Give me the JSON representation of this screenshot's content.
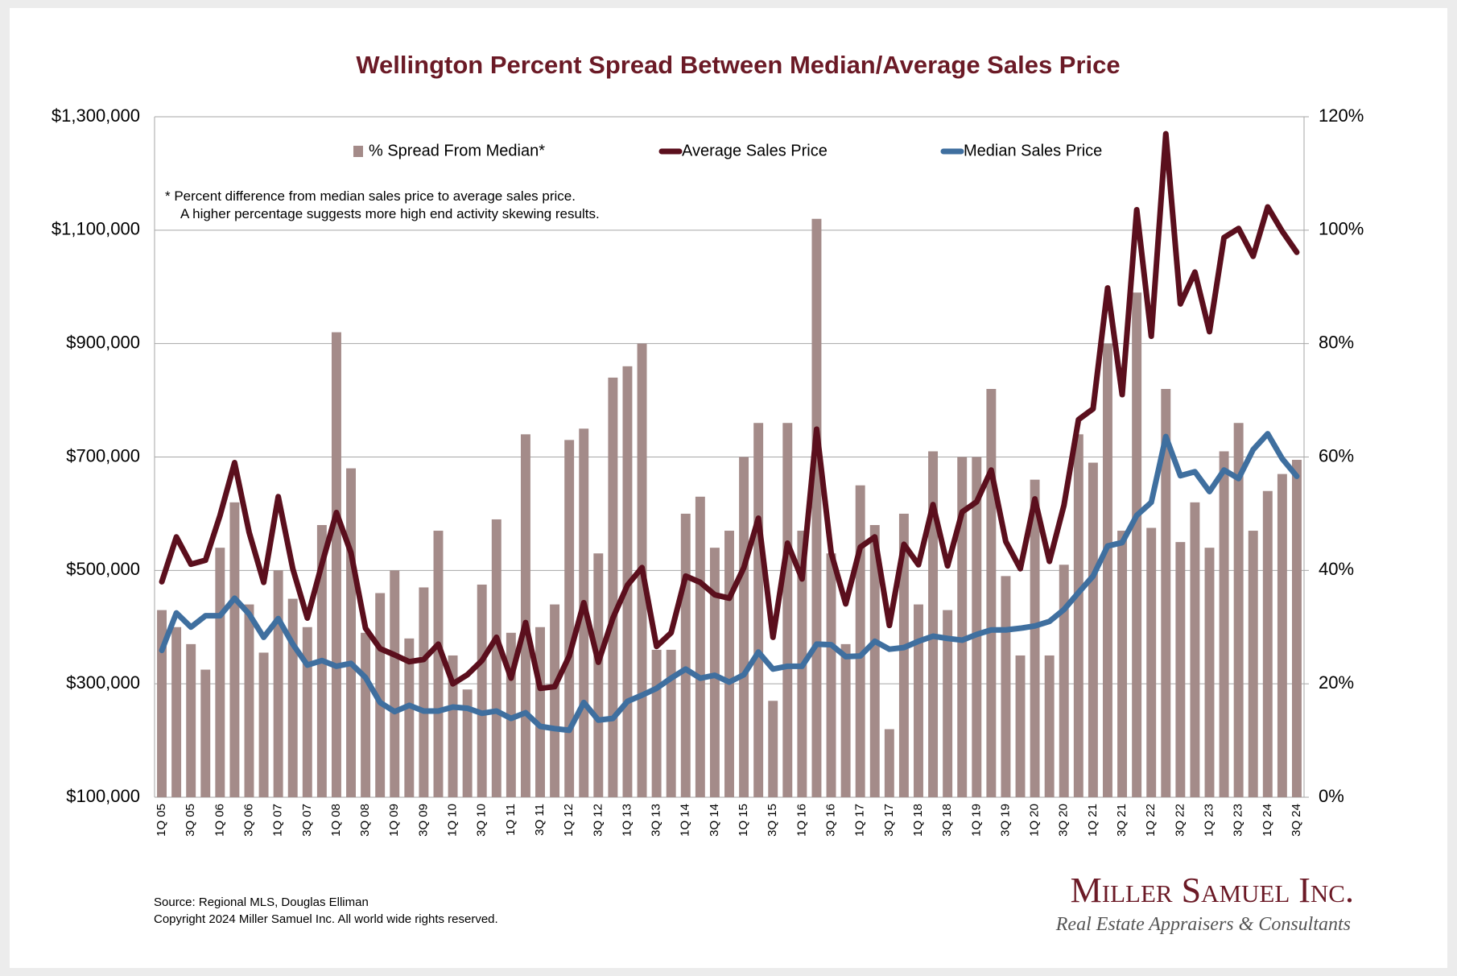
{
  "chart_data": {
    "type": "combo",
    "title": "Wellington Percent Spread Between Median/Average Sales Price",
    "categories": [
      "1Q 05",
      null,
      "3Q 05",
      null,
      "1Q 06",
      null,
      "3Q 06",
      null,
      "1Q 07",
      null,
      "3Q 07",
      null,
      "1Q 08",
      null,
      "3Q 08",
      null,
      "1Q 09",
      null,
      "3Q 09",
      null,
      "1Q 10",
      null,
      "3Q 10",
      null,
      "1Q 11",
      null,
      "3Q 11",
      null,
      "1Q 12",
      null,
      "3Q 12",
      null,
      "1Q 13",
      null,
      "3Q 13",
      null,
      "1Q 14",
      null,
      "3Q 14",
      null,
      "1Q 15",
      null,
      "3Q 15",
      null,
      "1Q 16",
      null,
      "3Q 16",
      null,
      "1Q 17",
      null,
      "3Q 17",
      null,
      "1Q 18",
      null,
      "3Q 18",
      null,
      "1Q 19",
      null,
      "3Q 19",
      null,
      "1Q 20",
      null,
      "3Q 20",
      null,
      "1Q 21",
      null,
      "3Q 21",
      null,
      "1Q 22",
      null,
      "3Q 22",
      null,
      "1Q 23",
      null,
      "3Q 23",
      null,
      "1Q 24",
      null,
      "3Q 24"
    ],
    "series": [
      {
        "name": "% Spread From Median*",
        "type": "bar",
        "axis": "y2",
        "color": "#a48b89",
        "values": [
          33,
          30,
          27,
          22.5,
          44,
          52,
          34,
          25.5,
          40,
          35,
          30,
          48,
          82,
          58,
          29,
          36,
          40,
          28,
          37,
          47,
          25,
          19,
          37.5,
          49,
          29,
          64,
          30,
          34,
          63,
          65,
          43,
          74,
          76,
          80,
          26,
          26,
          50,
          53,
          44,
          47,
          60,
          66,
          17,
          66,
          47,
          102,
          43,
          27,
          55,
          48,
          12,
          50,
          34,
          61,
          33,
          60,
          60,
          72,
          39,
          25,
          56,
          25,
          41,
          64,
          59,
          80,
          47,
          89,
          47.5,
          72,
          45,
          52,
          44,
          61,
          66,
          47,
          54,
          57,
          59.5
        ]
      },
      {
        "name": "Average Sales Price",
        "type": "line",
        "color": "#5b0f1d",
        "values": [
          480000,
          559000,
          511000,
          518000,
          597000,
          690000,
          567000,
          479000,
          630000,
          503000,
          416000,
          511000,
          602000,
          531000,
          398000,
          362000,
          351000,
          339000,
          343000,
          370000,
          300000,
          316000,
          341000,
          382000,
          310000,
          408000,
          292000,
          295000,
          349000,
          443000,
          338000,
          416000,
          474000,
          505000,
          366000,
          390000,
          490000,
          479000,
          457000,
          451000,
          505000,
          592000,
          382000,
          548000,
          485000,
          749000,
          531000,
          441000,
          541000,
          559000,
          403000,
          546000,
          510000,
          616000,
          508000,
          603000,
          621000,
          677000,
          551000,
          503000,
          626000,
          516000,
          615000,
          766000,
          785000,
          998000,
          810000,
          1136000,
          913000,
          1270000,
          970000,
          1026000,
          921000,
          1087000,
          1103000,
          1054000,
          1141000,
          1098000,
          1061000
        ]
      },
      {
        "name": "Median Sales Price",
        "type": "line",
        "color": "#3f6f9f",
        "values": [
          359000,
          425000,
          400000,
          420000,
          420000,
          451000,
          423000,
          382000,
          415000,
          370000,
          333000,
          341000,
          331000,
          336000,
          311000,
          267000,
          251000,
          262000,
          252000,
          252000,
          259000,
          257000,
          248000,
          252000,
          239000,
          249000,
          225000,
          221000,
          218000,
          267000,
          236000,
          239000,
          269000,
          280000,
          292000,
          310000,
          326000,
          310000,
          315000,
          303000,
          316000,
          356000,
          326000,
          331000,
          331000,
          370000,
          369000,
          348000,
          349000,
          375000,
          361000,
          364000,
          375000,
          384000,
          380000,
          377000,
          387000,
          395000,
          395000,
          398000,
          402000,
          410000,
          431000,
          461000,
          490000,
          543000,
          549000,
          597000,
          620000,
          736000,
          667000,
          674000,
          639000,
          677000,
          662000,
          713000,
          741000,
          697000,
          666000
        ]
      }
    ],
    "ylim": [
      100000,
      1300000
    ],
    "yticks": [
      {
        "value": 100000,
        "label": "$100,000"
      },
      {
        "value": 300000,
        "label": "$300,000"
      },
      {
        "value": 500000,
        "label": "$500,000"
      },
      {
        "value": 700000,
        "label": "$700,000"
      },
      {
        "value": 900000,
        "label": "$900,000"
      },
      {
        "value": 1100000,
        "label": "$1,100,000"
      },
      {
        "value": 1300000,
        "label": "$1,300,000"
      }
    ],
    "y2lim": [
      0,
      120
    ],
    "y2ticks": [
      {
        "value": 0,
        "label": "0%"
      },
      {
        "value": 20,
        "label": "20%"
      },
      {
        "value": 40,
        "label": "40%"
      },
      {
        "value": 60,
        "label": "60%"
      },
      {
        "value": 80,
        "label": "80%"
      },
      {
        "value": 100,
        "label": "100%"
      },
      {
        "value": 120,
        "label": "120%"
      }
    ],
    "grid": true,
    "legend": "top",
    "annotations": [
      "*  Percent difference from median sales price to average sales price.",
      "A higher percentage suggests more high end activity skewing results."
    ],
    "source": [
      "Source: Regional MLS, Douglas Elliman",
      "Copyright 2024 Miller Samuel Inc.  All world wide rights reserved."
    ],
    "logo": {
      "name": "Miller Samuel Inc.",
      "tagline": "Real Estate Appraisers & Consultants"
    }
  }
}
